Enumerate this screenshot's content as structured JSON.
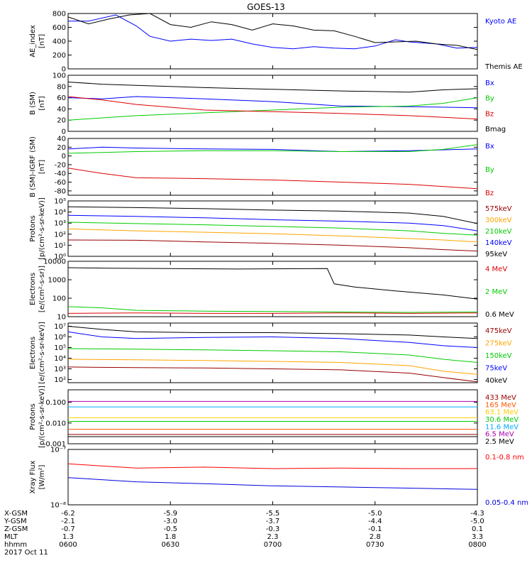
{
  "title": "GOES-13",
  "chart_data": [
    {
      "type": "line",
      "ylabel": "AE_index\n[nT]",
      "yscale": "linear",
      "ylim": [
        0,
        800
      ],
      "yticks": [
        "0",
        "200",
        "400",
        "600",
        "800"
      ],
      "series": [
        {
          "name": "Kyoto AE",
          "color": "#0000ff",
          "x": [
            0,
            3,
            7,
            10,
            12,
            15,
            18,
            21,
            24,
            27,
            30,
            33,
            36,
            39,
            42,
            45,
            48,
            50,
            54,
            57,
            60
          ],
          "y": [
            690,
            690,
            780,
            620,
            470,
            400,
            430,
            410,
            430,
            360,
            310,
            290,
            320,
            300,
            290,
            330,
            420,
            390,
            360,
            300,
            310
          ]
        },
        {
          "name": "Themis AE",
          "color": "#000000",
          "x": [
            0,
            3,
            6,
            9,
            12,
            15,
            18,
            21,
            24,
            27,
            30,
            33,
            36,
            39,
            42,
            45,
            48,
            51,
            54,
            57,
            60
          ],
          "y": [
            750,
            650,
            720,
            780,
            800,
            640,
            600,
            680,
            640,
            560,
            650,
            620,
            560,
            550,
            470,
            380,
            390,
            400,
            360,
            340,
            280
          ]
        }
      ]
    },
    {
      "type": "line",
      "ylabel": "B (SM)\n[nT]",
      "yscale": "linear",
      "ylim": [
        0,
        100
      ],
      "yticks": [
        "0",
        "20",
        "40",
        "60",
        "80",
        "100"
      ],
      "series": [
        {
          "name": "Bx",
          "color": "#0000ff",
          "x": [
            0,
            5,
            10,
            20,
            30,
            40,
            50,
            60
          ],
          "y": [
            60,
            58,
            62,
            58,
            53,
            45,
            44,
            42
          ]
        },
        {
          "name": "By",
          "color": "#00cc00",
          "x": [
            0,
            5,
            10,
            20,
            30,
            40,
            50,
            55,
            60
          ],
          "y": [
            20,
            24,
            28,
            33,
            38,
            43,
            45,
            50,
            60
          ]
        },
        {
          "name": "Bz",
          "color": "#dd0000",
          "x": [
            0,
            5,
            10,
            20,
            30,
            40,
            50,
            60
          ],
          "y": [
            62,
            56,
            48,
            38,
            35,
            32,
            28,
            22
          ]
        },
        {
          "name": "Bmag",
          "color": "#000000",
          "x": [
            0,
            5,
            10,
            20,
            30,
            40,
            50,
            55,
            60
          ],
          "y": [
            88,
            84,
            82,
            78,
            75,
            72,
            70,
            74,
            76
          ]
        }
      ]
    },
    {
      "type": "line",
      "ylabel": "B (SM)-IGRF (SM)\n[nT]",
      "yscale": "linear",
      "ylim": [
        -90,
        40
      ],
      "yticks": [
        "-80",
        "-60",
        "-40",
        "-20",
        "0",
        "20",
        "40"
      ],
      "series": [
        {
          "name": "Bx",
          "color": "#0000ff",
          "x": [
            0,
            5,
            10,
            20,
            30,
            40,
            50,
            60
          ],
          "y": [
            16,
            20,
            18,
            16,
            15,
            10,
            12,
            16
          ]
        },
        {
          "name": "By",
          "color": "#00cc00",
          "x": [
            0,
            5,
            10,
            20,
            30,
            40,
            50,
            55,
            60
          ],
          "y": [
            6,
            8,
            10,
            12,
            12,
            10,
            10,
            15,
            26
          ]
        },
        {
          "name": "Bz",
          "color": "#dd0000",
          "x": [
            0,
            5,
            10,
            20,
            30,
            40,
            50,
            60
          ],
          "y": [
            -28,
            -40,
            -50,
            -52,
            -55,
            -60,
            -65,
            -75
          ]
        }
      ]
    },
    {
      "type": "line",
      "ylabel": "Protons\n[p/(cm²-s-sr-keV)]",
      "yscale": "log",
      "ylim": [
        1,
        100000
      ],
      "yticks": [
        "10⁰",
        "10¹",
        "10²",
        "10³",
        "10⁴",
        "10⁵"
      ],
      "series": [
        {
          "name": "575keV",
          "color": "#990000",
          "x": [
            0,
            10,
            20,
            30,
            40,
            50,
            55,
            60
          ],
          "y": [
            30,
            28,
            20,
            15,
            10,
            6,
            4,
            3
          ]
        },
        {
          "name": "300keV",
          "color": "#ffa500",
          "x": [
            0,
            10,
            20,
            30,
            40,
            50,
            55,
            60
          ],
          "y": [
            300,
            200,
            150,
            110,
            70,
            40,
            30,
            20
          ]
        },
        {
          "name": "210keV",
          "color": "#00cc00",
          "x": [
            0,
            10,
            20,
            30,
            40,
            50,
            55,
            60
          ],
          "y": [
            1200,
            900,
            700,
            500,
            350,
            200,
            120,
            80
          ]
        },
        {
          "name": "140keV",
          "color": "#0000ff",
          "x": [
            0,
            10,
            20,
            30,
            40,
            50,
            55,
            60
          ],
          "y": [
            5000,
            4000,
            3000,
            2000,
            1500,
            1000,
            600,
            200
          ]
        },
        {
          "name": "95keV",
          "color": "#000000",
          "x": [
            0,
            10,
            20,
            30,
            40,
            50,
            55,
            60
          ],
          "y": [
            30000,
            25000,
            20000,
            15000,
            12000,
            8000,
            4000,
            900
          ]
        }
      ]
    },
    {
      "type": "line",
      "ylabel": "Electrons\n[e/(cm²-s-sr)]",
      "yscale": "log",
      "ylim": [
        10,
        10000
      ],
      "yticks": [
        "10",
        "100",
        "1000",
        "10000"
      ],
      "series": [
        {
          "name": "4 MeV",
          "color": "#dd0000",
          "x": [
            0,
            10,
            20,
            30,
            40,
            50,
            60
          ],
          "y": [
            15,
            16,
            15,
            15,
            16,
            15,
            16
          ]
        },
        {
          "name": "2 MeV",
          "color": "#00cc00",
          "x": [
            0,
            5,
            10,
            20,
            30,
            40,
            50,
            60
          ],
          "y": [
            35,
            30,
            22,
            20,
            19,
            18,
            17,
            18
          ]
        },
        {
          "name": "0.6 MeV",
          "color": "#000000",
          "x": [
            0,
            6,
            15,
            25,
            38,
            39,
            42,
            48,
            55,
            60
          ],
          "y": [
            4500,
            4200,
            4000,
            3800,
            4000,
            600,
            400,
            250,
            150,
            90
          ]
        }
      ]
    },
    {
      "type": "line",
      "ylabel": "Electrons\n[e/(cm²-s-sr-keV)]",
      "yscale": "log",
      "ylim": [
        50,
        20000000
      ],
      "yticks": [
        "10²",
        "10³",
        "10⁴",
        "10⁵",
        "10⁶",
        "10⁷"
      ],
      "series": [
        {
          "name": "475keV",
          "color": "#990000",
          "x": [
            0,
            10,
            20,
            30,
            40,
            50,
            55,
            60
          ],
          "y": [
            1500,
            1300,
            1200,
            1000,
            800,
            400,
            150,
            60
          ]
        },
        {
          "name": "275keV",
          "color": "#ffa500",
          "x": [
            0,
            10,
            20,
            30,
            40,
            50,
            55,
            60
          ],
          "y": [
            8000,
            7000,
            6000,
            5000,
            4000,
            2000,
            600,
            300
          ]
        },
        {
          "name": "150keV",
          "color": "#00cc00",
          "x": [
            0,
            10,
            20,
            30,
            40,
            50,
            55,
            60
          ],
          "y": [
            80000,
            70000,
            60000,
            50000,
            40000,
            20000,
            8000,
            4000
          ]
        },
        {
          "name": "75keV",
          "color": "#0000ff",
          "x": [
            0,
            5,
            10,
            20,
            30,
            40,
            50,
            55,
            60
          ],
          "y": [
            3000000,
            1000000,
            700000,
            900000,
            1000000,
            700000,
            300000,
            150000,
            100000
          ]
        },
        {
          "name": "40keV",
          "color": "#000000",
          "x": [
            0,
            5,
            10,
            20,
            30,
            40,
            50,
            55,
            60
          ],
          "y": [
            10000000,
            5000000,
            3000000,
            2500000,
            2500000,
            2000000,
            1500000,
            1000000,
            700000
          ]
        }
      ]
    },
    {
      "type": "line",
      "ylabel": "Protons\n[p/(cm²-s-sr-keV)]",
      "yscale": "log",
      "ylim": [
        0.001,
        0.4
      ],
      "yticks": [
        "0.001",
        "0.010",
        "0.100"
      ],
      "series": [
        {
          "name": "433 MeV",
          "color": "#990000",
          "x": [
            0,
            20,
            40,
            60
          ],
          "y": [
            0.0028,
            0.0028,
            0.0028,
            0.0028
          ]
        },
        {
          "name": "165 MeV",
          "color": "#ff5500",
          "x": [
            0,
            20,
            40,
            60
          ],
          "y": [
            0.005,
            0.005,
            0.005,
            0.005
          ]
        },
        {
          "name": "63.1 MeV",
          "color": "#ffcc00",
          "x": [
            0,
            20,
            40,
            60
          ],
          "y": [
            0.018,
            0.018,
            0.018,
            0.018
          ]
        },
        {
          "name": "30.6 MeV",
          "color": "#00cc00",
          "x": [
            0,
            20,
            40,
            60
          ],
          "y": [
            0.012,
            0.012,
            0.012,
            0.012
          ]
        },
        {
          "name": "11.6 MeV",
          "color": "#00aaff",
          "x": [
            0,
            20,
            40,
            60
          ],
          "y": [
            0.06,
            0.06,
            0.06,
            0.06
          ]
        },
        {
          "name": "6.5 MeV",
          "color": "#aa00aa",
          "x": [
            0,
            20,
            40,
            60
          ],
          "y": [
            0.11,
            0.11,
            0.11,
            0.11
          ]
        },
        {
          "name": "2.5 MeV",
          "color": "#000000",
          "x": [
            0,
            20,
            40,
            60
          ],
          "y": [
            0.0022,
            0.0022,
            0.0022,
            0.0022
          ]
        }
      ]
    },
    {
      "type": "line",
      "ylabel": "Xray Flux\n[W/m²]",
      "yscale": "log",
      "ylim": [
        1e-08,
        1e-07
      ],
      "yticks": [
        "10⁻⁸",
        "10⁻⁷"
      ],
      "series": [
        {
          "name": "0.1-0.8 nm",
          "color": "#ff0000",
          "x": [
            0,
            10,
            20,
            30,
            40,
            50,
            60
          ],
          "y": [
            5.5e-08,
            4.6e-08,
            4.8e-08,
            4.5e-08,
            4.6e-08,
            4.5e-08,
            4.5e-08
          ]
        },
        {
          "name": "0.05-0.4 nm",
          "color": "#0000dd",
          "x": [
            0,
            10,
            20,
            30,
            40,
            50,
            60
          ],
          "y": [
            3.1e-08,
            2.6e-08,
            2.4e-08,
            2.2e-08,
            2.1e-08,
            2e-08,
            1.9e-08
          ]
        }
      ]
    }
  ],
  "x_axis": {
    "row_labels": [
      "X-GSM",
      "Y-GSM",
      "Z-GSM",
      "MLT",
      "hhmm",
      "2017 Oct 11"
    ],
    "ticks": [
      {
        "x": 0,
        "values": [
          "-6.2",
          "-2.1",
          "-0.7",
          "1.3",
          "0600"
        ]
      },
      {
        "x": 15,
        "values": [
          "-5.9",
          "-3.0",
          "-0.5",
          "1.8",
          "0630"
        ]
      },
      {
        "x": 30,
        "values": [
          "-5.5",
          "-3.7",
          "-0.3",
          "2.3",
          "0700"
        ]
      },
      {
        "x": 45,
        "values": [
          "-5.0",
          "-4.4",
          "-0.1",
          "2.8",
          "0730"
        ]
      },
      {
        "x": 60,
        "values": [
          "-4.3",
          "-5.0",
          "0.1",
          "3.3",
          "0800"
        ]
      }
    ],
    "xlim": [
      0,
      60
    ]
  }
}
